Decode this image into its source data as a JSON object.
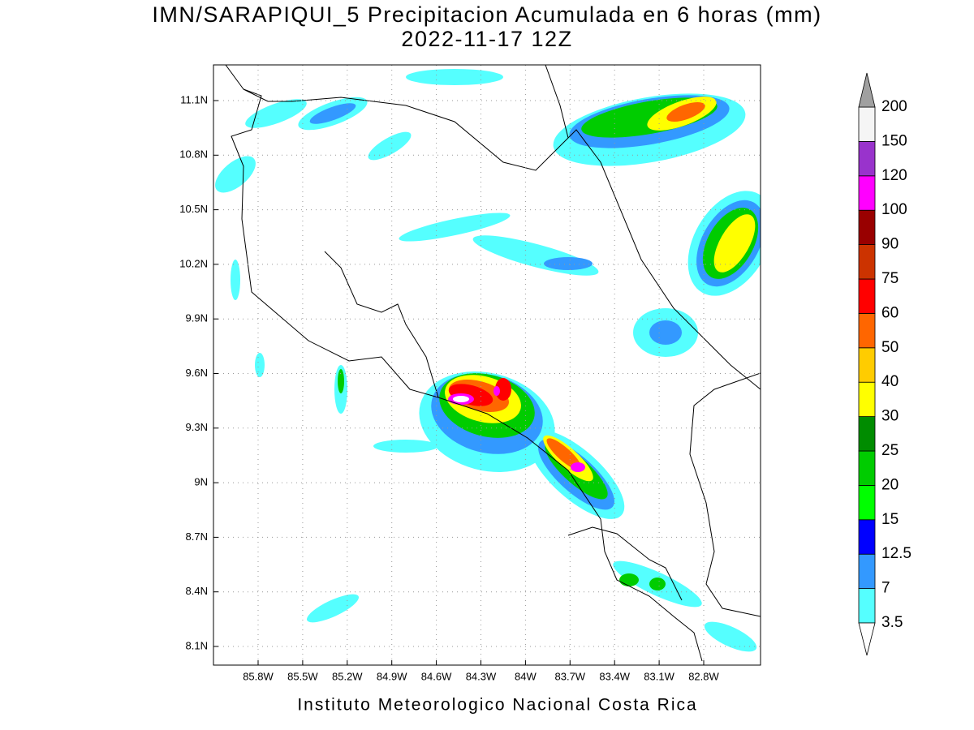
{
  "title": "IMN/SARAPIQUI_5 Precipitacion Acumulada en 6 horas (mm)",
  "subtitle": "2022-11-17 12Z",
  "x_ticks": [
    "85.8W",
    "85.5W",
    "85.2W",
    "84.9W",
    "84.6W",
    "84.3W",
    "84W",
    "83.7W",
    "83.4W",
    "83.1W",
    "82.8W"
  ],
  "y_ticks": [
    "11.1N",
    "10.8N",
    "10.5N",
    "10.2N",
    "9.9N",
    "9.6N",
    "9.3N",
    "9N",
    "8.7N",
    "8.4N",
    "8.1N"
  ],
  "colorbar": {
    "levels": [
      3.5,
      7,
      12.5,
      15,
      20,
      25,
      30,
      40,
      50,
      60,
      75,
      90,
      100,
      120,
      150,
      200
    ],
    "colors": [
      "#55ffff",
      "#3399ff",
      "#0000ff",
      "#00ff00",
      "#00cc00",
      "#008c00",
      "#ffff00",
      "#ffcc00",
      "#ff6600",
      "#ff0000",
      "#cc3300",
      "#990000",
      "#ff00ff",
      "#9933cc",
      "#f5f5f5"
    ],
    "under_color": "#ffffff",
    "over_color": "#a0a0a0"
  },
  "footer": "Instituto Meteorologico Nacional Costa Rica"
}
